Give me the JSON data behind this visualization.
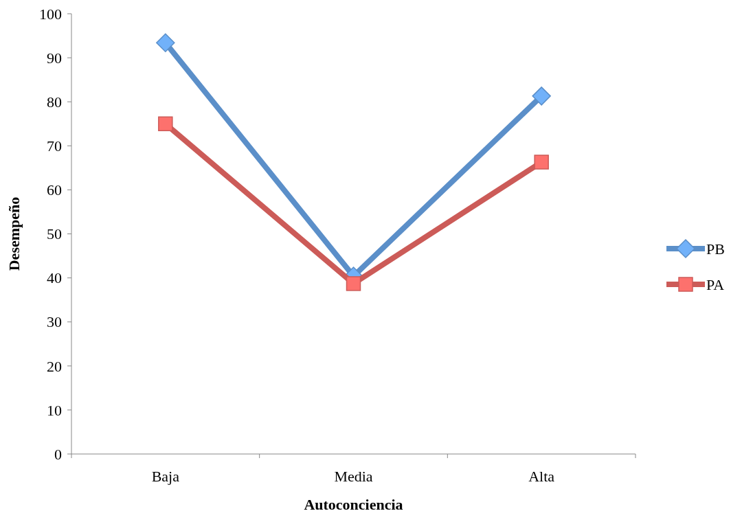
{
  "chart_data": {
    "type": "line",
    "xlabel": "Autoconciencia",
    "ylabel": "Desempeño",
    "categories": [
      "Baja",
      "Media",
      "Alta"
    ],
    "series": [
      {
        "name": "PB",
        "color": "#5b8fc9",
        "marker": "diamond",
        "values": [
          93.4,
          40.4,
          81.3
        ]
      },
      {
        "name": "PA",
        "color": "#cc5b58",
        "marker": "square",
        "values": [
          75.0,
          38.7,
          66.3
        ]
      }
    ],
    "ylim": [
      0,
      100
    ],
    "yticks": [
      0,
      10,
      20,
      30,
      40,
      50,
      60,
      70,
      80,
      90,
      100
    ],
    "grid": false,
    "legend": "right"
  }
}
